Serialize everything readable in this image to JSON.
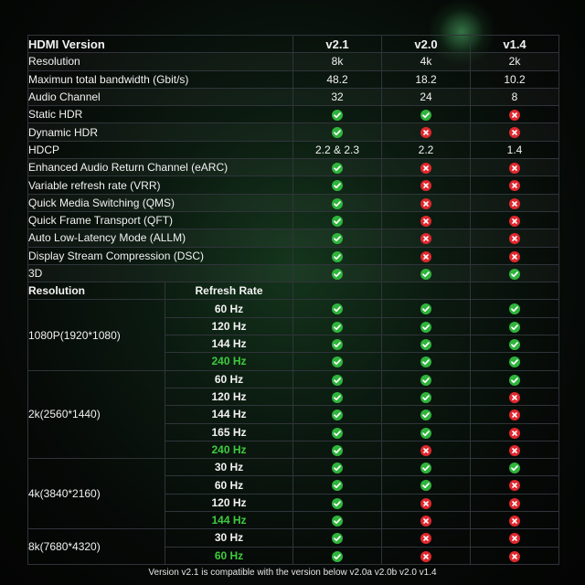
{
  "colors": {
    "check": "#2fb43c",
    "cross": "#e0282e",
    "highlight_rate": "#3ecb3e"
  },
  "header": {
    "title": "HDMI Version",
    "versions": [
      "v2.1",
      "v2.0",
      "v1.4"
    ]
  },
  "features": [
    {
      "label": "Resolution",
      "values": [
        "8k",
        "4k",
        "2k"
      ]
    },
    {
      "label": "Maximun total bandwidth (Gbit/s)",
      "values": [
        "48.2",
        "18.2",
        "10.2"
      ]
    },
    {
      "label": "Audio Channel",
      "values": [
        "32",
        "24",
        "8"
      ]
    },
    {
      "label": "Static HDR",
      "values": [
        "check",
        "check",
        "cross"
      ]
    },
    {
      "label": "Dynamic HDR",
      "values": [
        "check",
        "cross",
        "cross"
      ]
    },
    {
      "label": "HDCP",
      "values": [
        "2.2 & 2.3",
        "2.2",
        "1.4"
      ]
    },
    {
      "label": "Enhanced Audio Return Channel (eARC)",
      "values": [
        "check",
        "cross",
        "cross"
      ]
    },
    {
      "label": "Variable refresh rate (VRR)",
      "values": [
        "check",
        "cross",
        "cross"
      ]
    },
    {
      "label": "Quick Media Switching (QMS)",
      "values": [
        "check",
        "cross",
        "cross"
      ]
    },
    {
      "label": "Quick Frame Transport (QFT)",
      "values": [
        "check",
        "cross",
        "cross"
      ]
    },
    {
      "label": "Auto Low-Latency Mode (ALLM)",
      "values": [
        "check",
        "cross",
        "cross"
      ]
    },
    {
      "label": "Display Stream Compression (DSC)",
      "values": [
        "check",
        "cross",
        "cross"
      ]
    },
    {
      "label": "3D",
      "values": [
        "check",
        "check",
        "check"
      ]
    }
  ],
  "subheader": {
    "resolution": "Resolution",
    "refresh_rate": "Refresh Rate"
  },
  "groups": [
    {
      "label": "1080P(1920*1080)",
      "rows": [
        {
          "rate": "60 Hz",
          "highlight": false,
          "values": [
            "check",
            "check",
            "check"
          ]
        },
        {
          "rate": "120 Hz",
          "highlight": false,
          "values": [
            "check",
            "check",
            "check"
          ]
        },
        {
          "rate": "144 Hz",
          "highlight": false,
          "values": [
            "check",
            "check",
            "check"
          ]
        },
        {
          "rate": "240 Hz",
          "highlight": true,
          "values": [
            "check",
            "check",
            "check"
          ]
        }
      ]
    },
    {
      "label": "2k(2560*1440)",
      "rows": [
        {
          "rate": "60 Hz",
          "highlight": false,
          "values": [
            "check",
            "check",
            "check"
          ]
        },
        {
          "rate": "120 Hz",
          "highlight": false,
          "values": [
            "check",
            "check",
            "cross"
          ]
        },
        {
          "rate": "144 Hz",
          "highlight": false,
          "values": [
            "check",
            "check",
            "cross"
          ]
        },
        {
          "rate": "165 Hz",
          "highlight": false,
          "values": [
            "check",
            "check",
            "cross"
          ]
        },
        {
          "rate": "240 Hz",
          "highlight": true,
          "values": [
            "check",
            "cross",
            "cross"
          ]
        }
      ]
    },
    {
      "label": "4k(3840*2160)",
      "rows": [
        {
          "rate": "30 Hz",
          "highlight": false,
          "values": [
            "check",
            "check",
            "check"
          ]
        },
        {
          "rate": "60 Hz",
          "highlight": false,
          "values": [
            "check",
            "check",
            "cross"
          ]
        },
        {
          "rate": "120 Hz",
          "highlight": false,
          "values": [
            "check",
            "cross",
            "cross"
          ]
        },
        {
          "rate": "144 Hz",
          "highlight": true,
          "values": [
            "check",
            "cross",
            "cross"
          ]
        }
      ]
    },
    {
      "label": "8k(7680*4320)",
      "rows": [
        {
          "rate": "30 Hz",
          "highlight": false,
          "values": [
            "check",
            "cross",
            "cross"
          ]
        },
        {
          "rate": "60 Hz",
          "highlight": true,
          "values": [
            "check",
            "cross",
            "cross"
          ]
        }
      ]
    }
  ],
  "footer": "Version v2.1 is compatible with the version below v2.0a v2.0b v2.0 v1.4"
}
